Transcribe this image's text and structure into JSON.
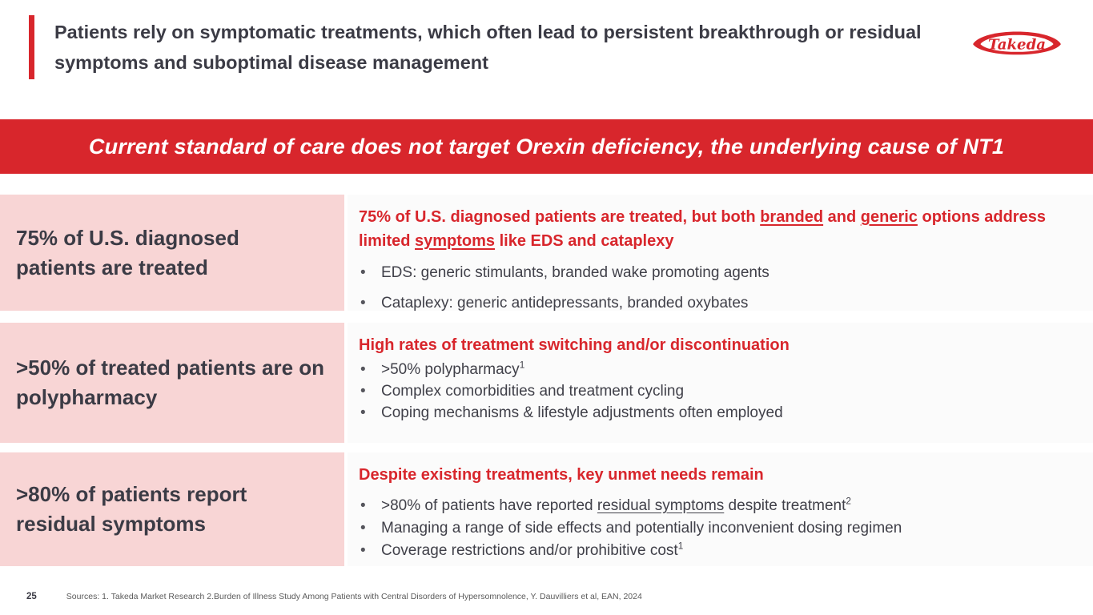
{
  "header": {
    "title": "Patients rely on symptomatic treatments, which often lead to persistent breakthrough or residual symptoms and suboptimal disease management",
    "logo_text": "Takeda"
  },
  "banner": {
    "text": "Current standard of care does not target Orexin deficiency, the underlying cause of NT1"
  },
  "colors": {
    "red": "#D8262C",
    "pink": "#F8D5D5",
    "dark_text": "#3B3B45",
    "panel_bg": "#FBFBFB"
  },
  "rows": [
    {
      "stat": "75% of U.S. diagnosed patients are treated",
      "heading": [
        {
          "t": "75% of U.S. diagnosed patients are treated, but both "
        },
        {
          "t": "branded",
          "u": true
        },
        {
          "t": " and "
        },
        {
          "t": "generic",
          "u": true
        },
        {
          "t": " options address limited "
        },
        {
          "t": "symptoms",
          "u": true
        },
        {
          "t": " like EDS and cataplexy"
        }
      ],
      "bullets": [
        [
          {
            "t": "EDS: generic stimulants, branded wake promoting agents"
          }
        ],
        [
          {
            "t": "Cataplexy: generic antidepressants, branded oxybates"
          }
        ]
      ]
    },
    {
      "stat": ">50% of treated patients are on polypharmacy",
      "heading": [
        {
          "t": "High rates of treatment switching and/or discontinuation"
        }
      ],
      "bullets": [
        [
          {
            "t": ">50% polypharmacy"
          },
          {
            "t": "1",
            "sup": true
          }
        ],
        [
          {
            "t": "Complex comorbidities and treatment cycling"
          }
        ],
        [
          {
            "t": "Coping mechanisms & lifestyle adjustments often employed"
          }
        ]
      ]
    },
    {
      "stat": ">80% of patients report residual symptoms",
      "heading": [
        {
          "t": "Despite existing treatments, key unmet needs remain"
        }
      ],
      "bullets": [
        [
          {
            "t": ">80% of patients have reported "
          },
          {
            "t": "residual symptoms",
            "u": true
          },
          {
            "t": " despite treatment"
          },
          {
            "t": "2",
            "sup": true
          }
        ],
        [
          {
            "t": "Managing a range of side effects and potentially inconvenient dosing regimen"
          }
        ],
        [
          {
            "t": "Coverage restrictions and/or prohibitive cost"
          },
          {
            "t": "1",
            "sup": true
          }
        ]
      ]
    }
  ],
  "footer": {
    "page_number": "25",
    "sources": "Sources: 1. Takeda Market Research 2.Burden of Illness Study Among Patients with Central Disorders of Hypersomnolence, Y. Dauvilliers et al, EAN, 2024"
  }
}
